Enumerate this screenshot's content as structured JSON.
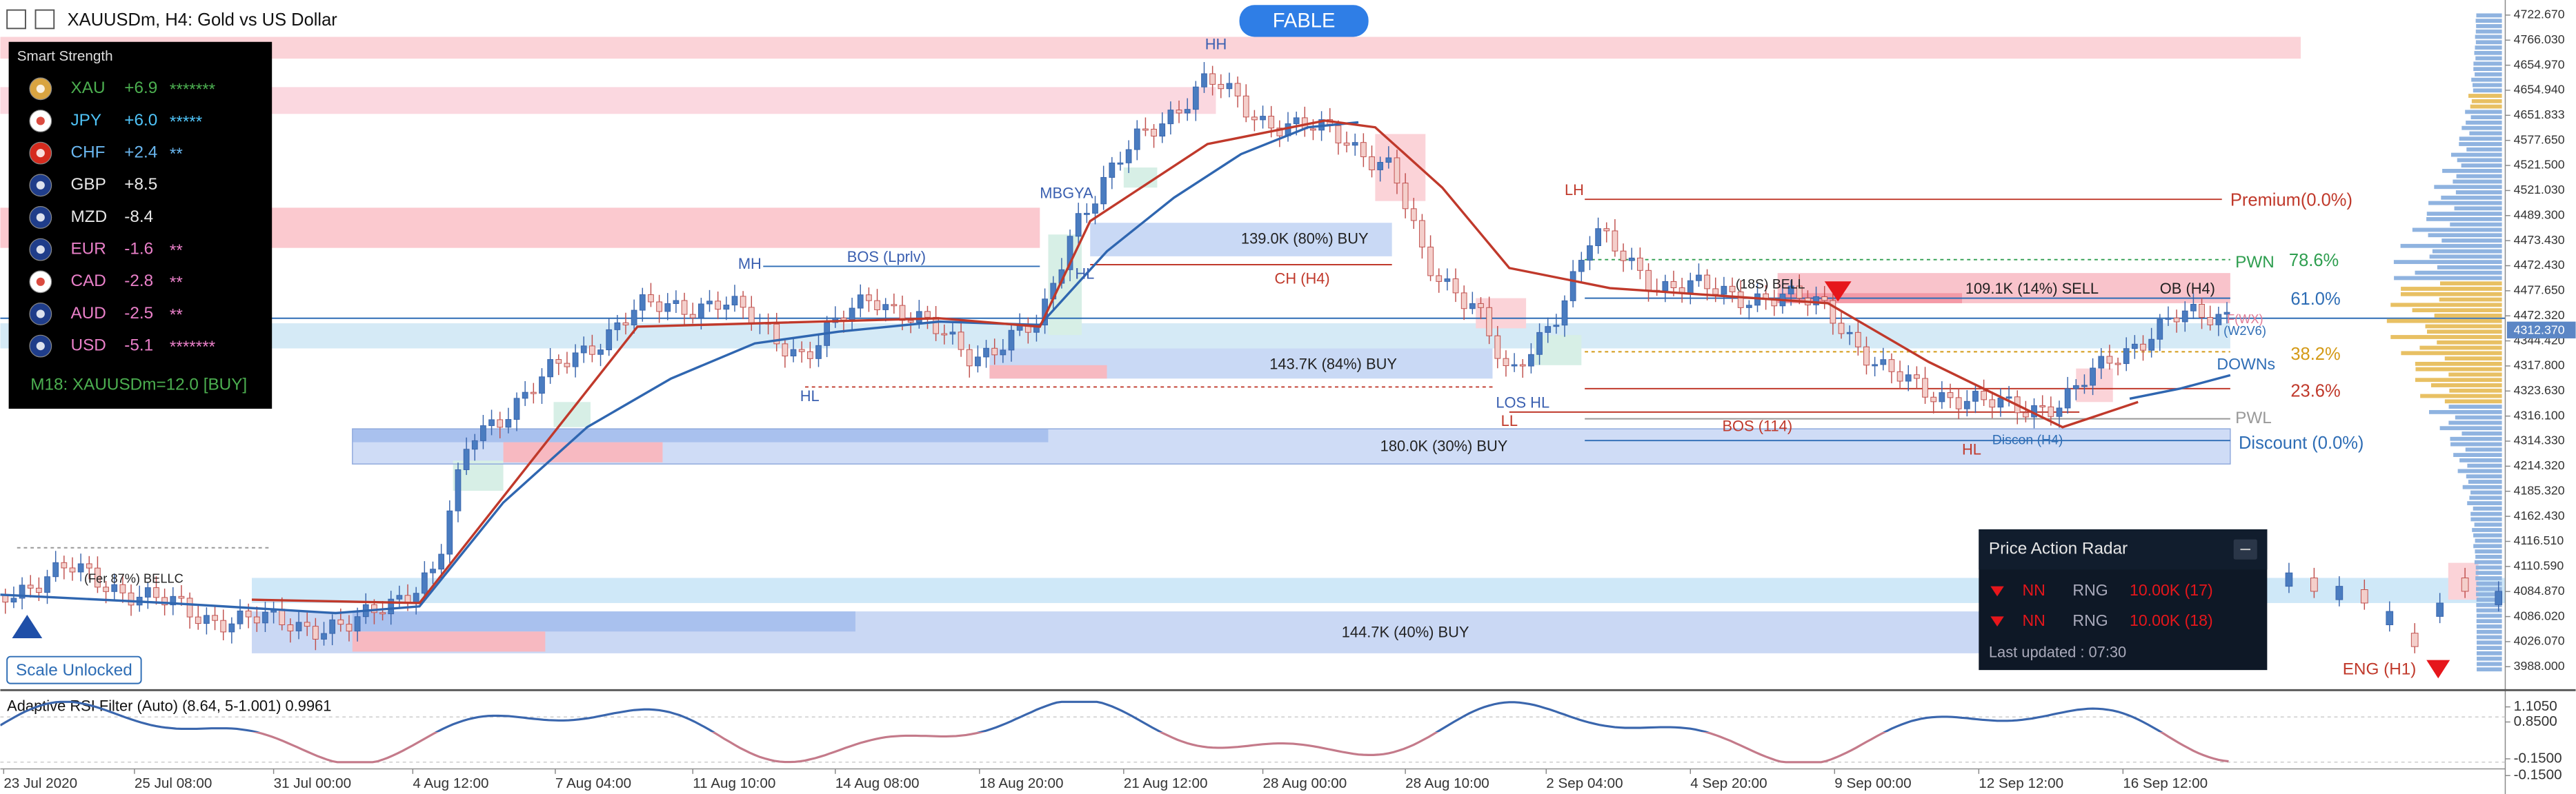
{
  "header": {
    "title": "XAUUSDm, H4:  Gold vs US Dollar",
    "badge": "FABLE"
  },
  "strength_panel": {
    "title": "Smart Strength",
    "rows": [
      {
        "code": "XAU",
        "value": "+6.9",
        "stars": "*******"
      },
      {
        "code": "JPY",
        "value": "+6.0",
        "stars": "*****"
      },
      {
        "code": "CHF",
        "value": "+2.4",
        "stars": "**"
      },
      {
        "code": "GBP",
        "value": "+8.5"
      },
      {
        "code": "MZD",
        "value": "-8.4"
      },
      {
        "code": "EUR",
        "value": "-1.6",
        "stars": "**"
      },
      {
        "code": "CAD",
        "value": "-2.8",
        "stars": "**"
      },
      {
        "code": "AUD",
        "value": "-2.5",
        "stars": "**"
      },
      {
        "code": "USD",
        "value": "-5.1",
        "stars": "*******"
      }
    ],
    "footer": "M18: XAUUSDm=12.0 [BUY]"
  },
  "annotations": [
    "HH",
    "MBGYA",
    "MH",
    "BOS (Lprlv)",
    "HL",
    "HL",
    "139.0K (80%) BUY",
    "CH (H4)",
    "143.7K (84%) BUY",
    "180.0K (30%) BUY",
    "144.7K (40%) BUY",
    "LH",
    "(18S) BELL",
    "109.1K (14%) SELL",
    "OB (H4)",
    "Premium(0.0%)",
    "PWN",
    "78.6%",
    "61.0%",
    "F(WX)",
    "(W2V6)",
    "38.2%",
    "DOWNs",
    "23.6%",
    "PWL",
    "Discount (0.0%)",
    "LOS HL",
    "LL",
    "BOS (114)",
    "HL",
    "Discon (H4)",
    "(Fer 87%) BELLC",
    "ENG (H1)"
  ],
  "scale_button": "Scale Unlocked",
  "price_axis": [
    "4722.670",
    "4766.030",
    "4654.970",
    "4654.940",
    "4651.833",
    "4577.650",
    "4521.500",
    "4521.030",
    "4489.300",
    "4473.430",
    "4472.430",
    "4477.650",
    "4472.320",
    "4344.420",
    "4317.800",
    "4323.630",
    "4316.100",
    "4314.330",
    "4214.320",
    "4185.320",
    "4162.430",
    "4116.510",
    "4110.590",
    "4084.870",
    "4086.020",
    "4026.070",
    "3988.000"
  ],
  "current_price": "4312.370",
  "date_axis": [
    "23 Jul 2020",
    "25 Jul 08:00",
    "31 Jul 00:00",
    "4 Aug 12:00",
    "7 Aug 04:00",
    "11 Aug 10:00",
    "14 Aug 08:00",
    "18 Aug 20:00",
    "21 Aug 12:00",
    "28 Aug 00:00",
    "28 Aug 10:00",
    "2 Sep 04:00",
    "4 Sep 20:00",
    "9 Sep 00:00",
    "12 Sep 12:00",
    "16 Sep 12:00"
  ],
  "radar": {
    "title": "Price Action Radar",
    "rows": [
      [
        "NN",
        "RNG",
        "10.00K (17)"
      ],
      [
        "NN",
        "RNG",
        "10.00K (18)"
      ]
    ],
    "footer": "Last updated : 07:30"
  },
  "indicator": {
    "title": "Adaptive RSI Filter (Auto) (8.64, 5-1.001) 0.9961",
    "axis": [
      "1.1050",
      "0.8500",
      "-0.1500",
      "-0.1500"
    ]
  }
}
